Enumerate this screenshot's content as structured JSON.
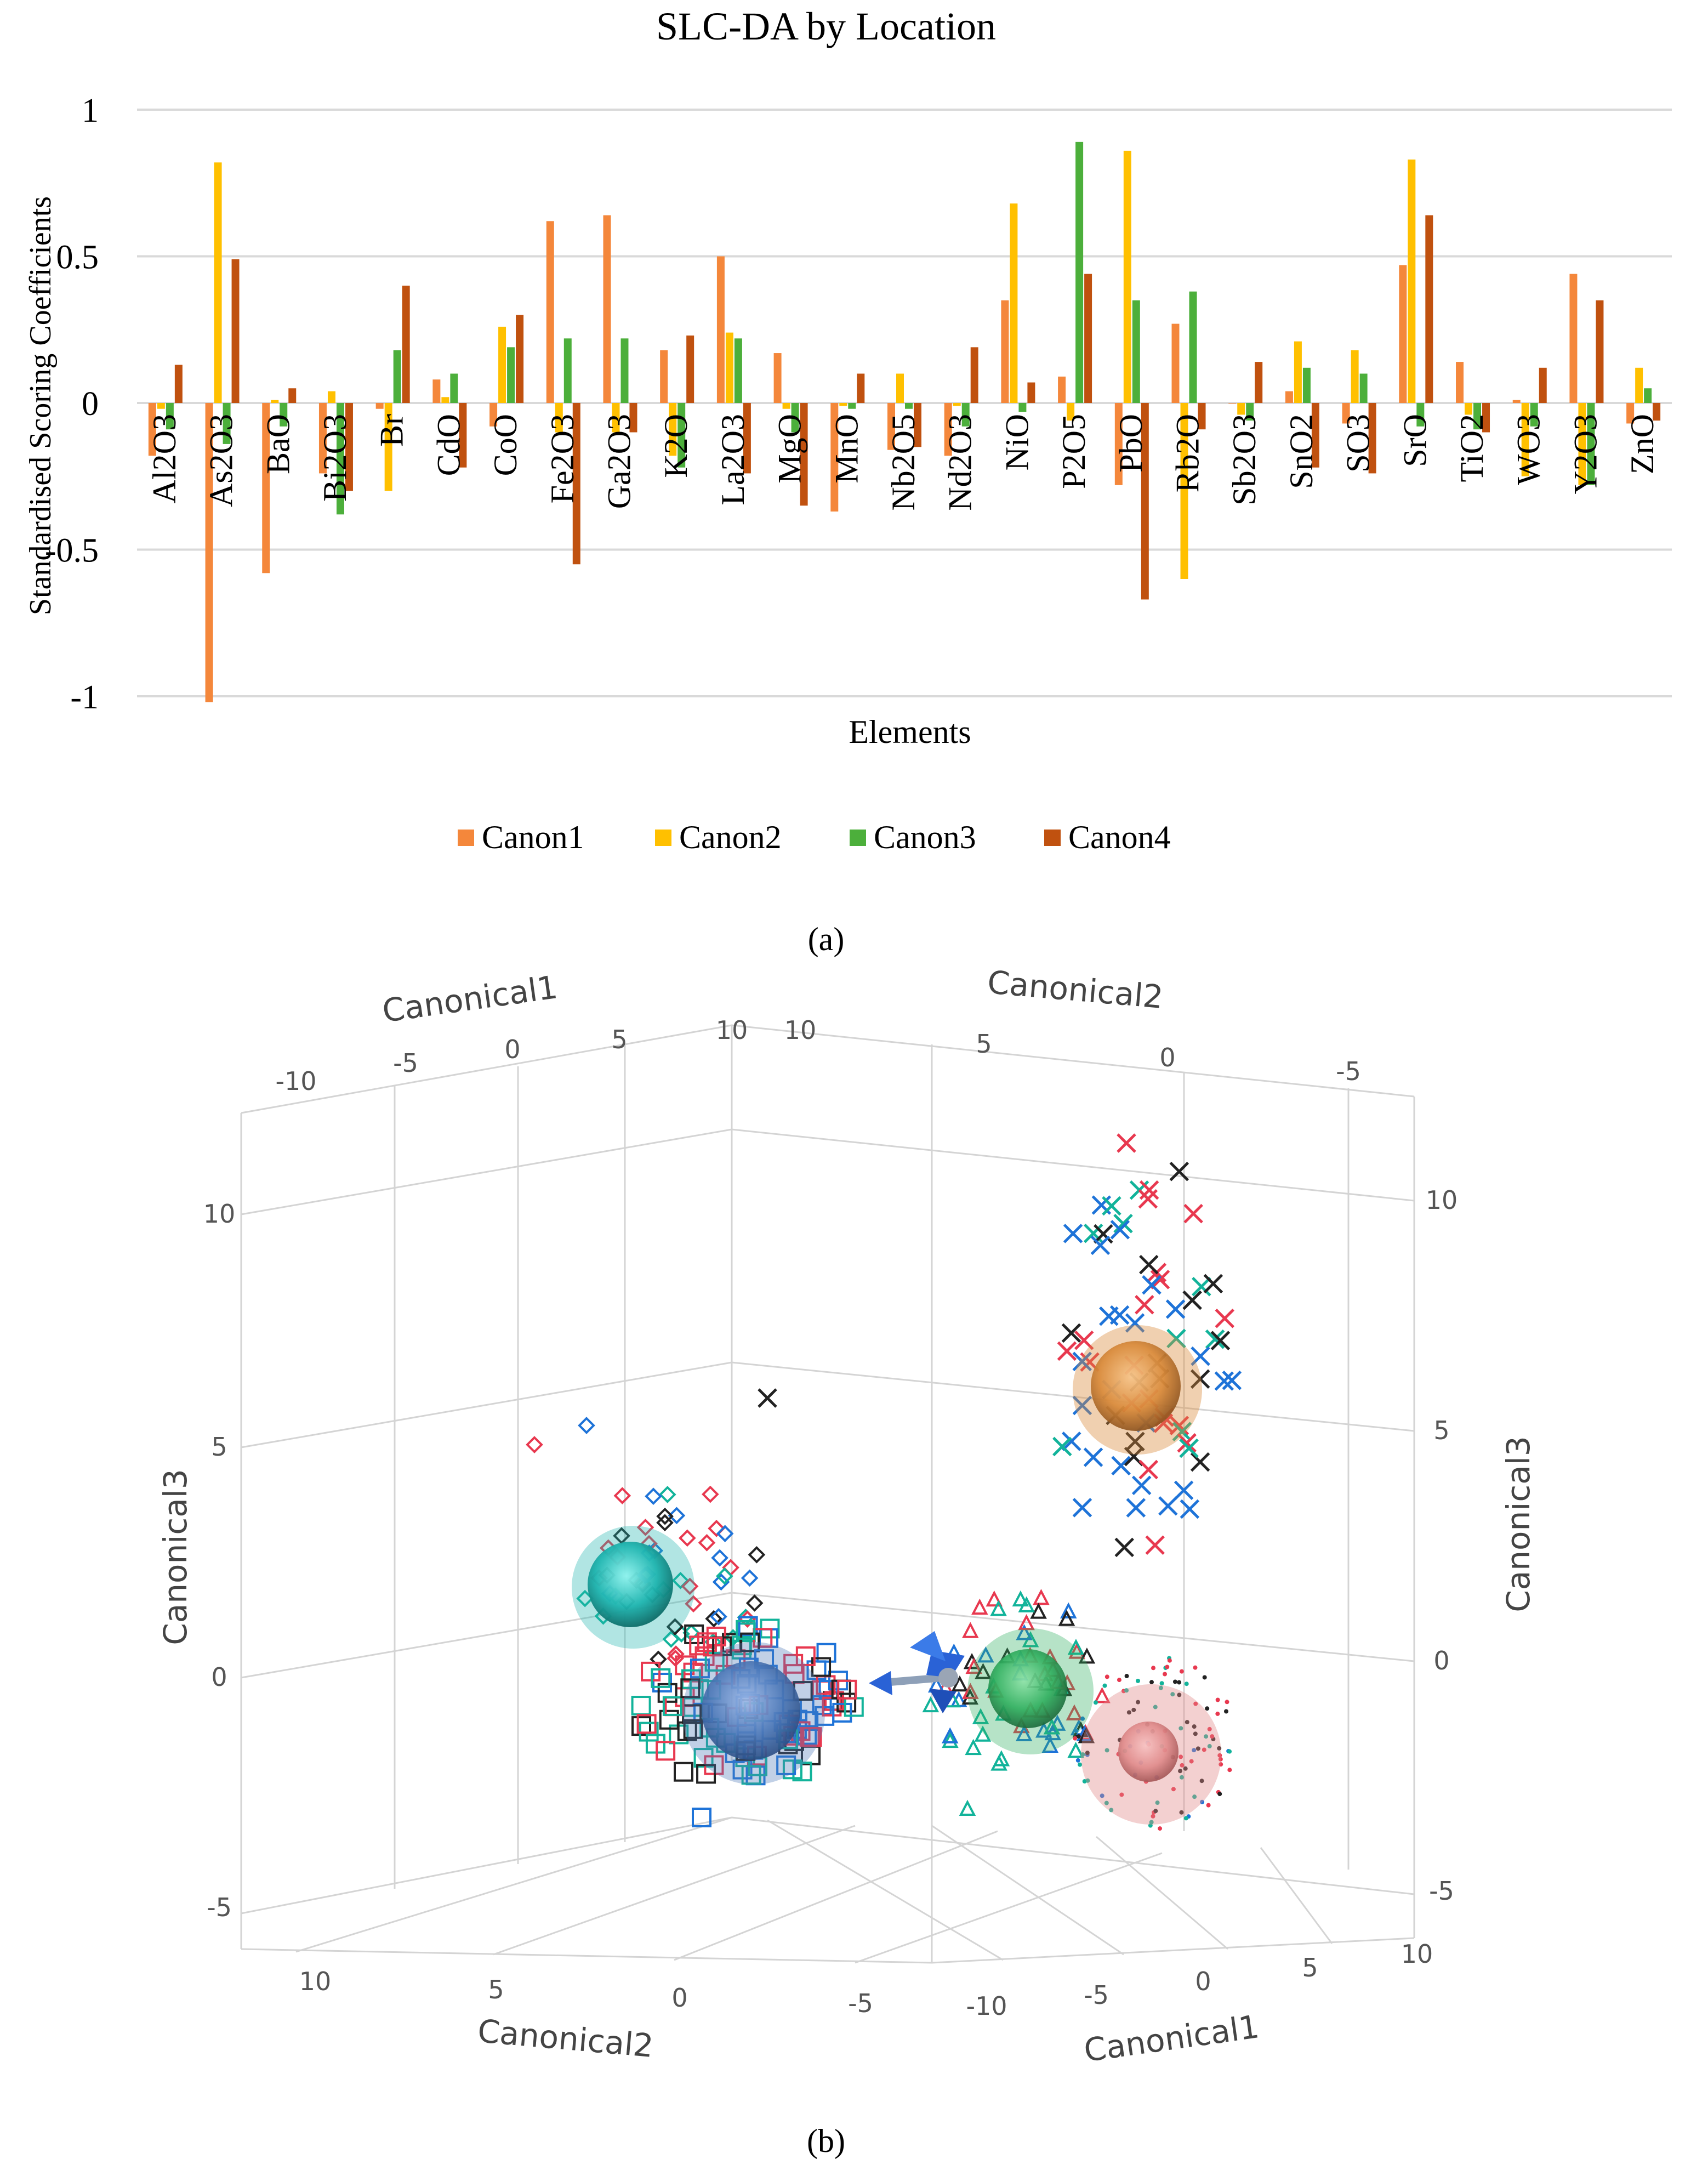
{
  "chart_data": [
    {
      "type": "bar",
      "panel": "a",
      "title": "SLC-DA by Location",
      "xlabel": "Elements",
      "ylabel": "Standardised Scoring Coefficients",
      "ylim": [
        -1,
        1
      ],
      "yticks": [
        -1,
        -0.5,
        0,
        0.5,
        1
      ],
      "ytick_labels": [
        "-1",
        "-0.5",
        "0",
        "0.5",
        "1"
      ],
      "grid": true,
      "legend_position": "bottom-center",
      "categories": [
        "Al2O3",
        "As2O3",
        "BaO",
        "Bi2O3",
        "Br",
        "CdO",
        "CoO",
        "Fe2O3",
        "Ga2O3",
        "K2O",
        "La2O3",
        "MgO",
        "MnO",
        "Nb2O5",
        "Nd2O3",
        "NiO",
        "P2O5",
        "PbO",
        "Rb2O",
        "Sb2O3",
        "SnO2",
        "SO3",
        "SrO",
        "TiO2",
        "WO3",
        "Y2O3",
        "ZnO"
      ],
      "series": [
        {
          "name": "Canon1",
          "color": "#F4873B",
          "values": [
            -0.18,
            -1.02,
            -0.58,
            -0.24,
            -0.02,
            0.08,
            -0.08,
            0.62,
            0.64,
            0.18,
            0.5,
            0.17,
            -0.37,
            -0.16,
            -0.18,
            0.35,
            0.09,
            -0.28,
            0.27,
            0.0,
            0.04,
            -0.07,
            0.47,
            0.14,
            0.01,
            0.44,
            -0.07
          ]
        },
        {
          "name": "Canon2",
          "color": "#FFC000",
          "values": [
            -0.02,
            0.82,
            0.01,
            0.04,
            -0.3,
            0.02,
            0.26,
            -0.1,
            -0.1,
            -0.18,
            0.24,
            -0.02,
            -0.01,
            0.1,
            -0.01,
            0.68,
            -0.06,
            0.86,
            -0.6,
            -0.04,
            0.21,
            0.18,
            0.83,
            -0.04,
            -0.25,
            -0.28,
            0.12
          ]
        },
        {
          "name": "Canon3",
          "color": "#4CAF3B",
          "values": [
            -0.09,
            -0.14,
            -0.08,
            -0.38,
            0.18,
            0.1,
            0.19,
            0.22,
            0.22,
            -0.22,
            0.22,
            -0.1,
            -0.02,
            -0.02,
            -0.08,
            -0.03,
            0.89,
            0.35,
            0.38,
            -0.06,
            0.12,
            0.1,
            -0.08,
            -0.09,
            -0.08,
            -0.28,
            0.05
          ]
        },
        {
          "name": "Canon4",
          "color": "#C0510F",
          "values": [
            0.13,
            0.49,
            0.05,
            -0.3,
            0.4,
            -0.22,
            0.3,
            -0.55,
            -0.1,
            0.23,
            -0.24,
            -0.35,
            0.1,
            -0.15,
            0.19,
            0.07,
            0.44,
            -0.67,
            -0.09,
            0.14,
            -0.22,
            -0.24,
            0.64,
            -0.1,
            0.12,
            0.35,
            -0.06
          ]
        }
      ],
      "legend": [
        "Canon1",
        "Canon2",
        "Canon3",
        "Canon4"
      ]
    },
    {
      "type": "scatter",
      "panel": "b",
      "title": "",
      "axes": [
        "Canonical1",
        "Canonical2",
        "Canonical3"
      ],
      "top_axis_canonical1": {
        "label": "Canonical1",
        "ticks": [
          "-10",
          "-5",
          "0",
          "5",
          "10"
        ]
      },
      "top_axis_canonical2": {
        "label": "Canonical2",
        "ticks": [
          "10",
          "5",
          "0",
          "-5"
        ]
      },
      "left_axis_canonical3": {
        "label": "Canonical3",
        "ticks": [
          "10",
          "5",
          "0",
          "-5"
        ]
      },
      "right_axis_canonical3": {
        "label": "Canonical3",
        "ticks": [
          "10",
          "5",
          "0",
          "-5"
        ]
      },
      "bottom_axis_canonical2": {
        "label": "Canonical2",
        "ticks": [
          "10",
          "5",
          "0",
          "-5"
        ]
      },
      "bottom_axis_canonical1": {
        "label": "Canonical1",
        "ticks": [
          "-10",
          "-5",
          "0",
          "5",
          "10"
        ]
      },
      "group_colors": [
        "#E8384F",
        "#1E73D8",
        "#12B39A",
        "#222222"
      ],
      "centroids": [
        {
          "name": "diamond-group",
          "marker": "diamond",
          "color": "#1FB5B0",
          "pos": [
            -6,
            7,
            2.5
          ]
        },
        {
          "name": "square-group",
          "marker": "square",
          "color": "#4C78B8",
          "pos": [
            -4,
            4,
            -1
          ]
        },
        {
          "name": "triangle-group",
          "marker": "triangle",
          "color": "#2FAF5E",
          "pos": [
            1,
            0,
            -0.5
          ]
        },
        {
          "name": "dot-group",
          "marker": "dot",
          "color": "#E08A8A",
          "pos": [
            4,
            -2,
            -1.5
          ]
        },
        {
          "name": "cross-group",
          "marker": "cross",
          "color": "#E08A3A",
          "pos": [
            2,
            -3,
            6
          ]
        }
      ]
    }
  ],
  "captions": {
    "a": "(a)",
    "b": "(b)"
  }
}
